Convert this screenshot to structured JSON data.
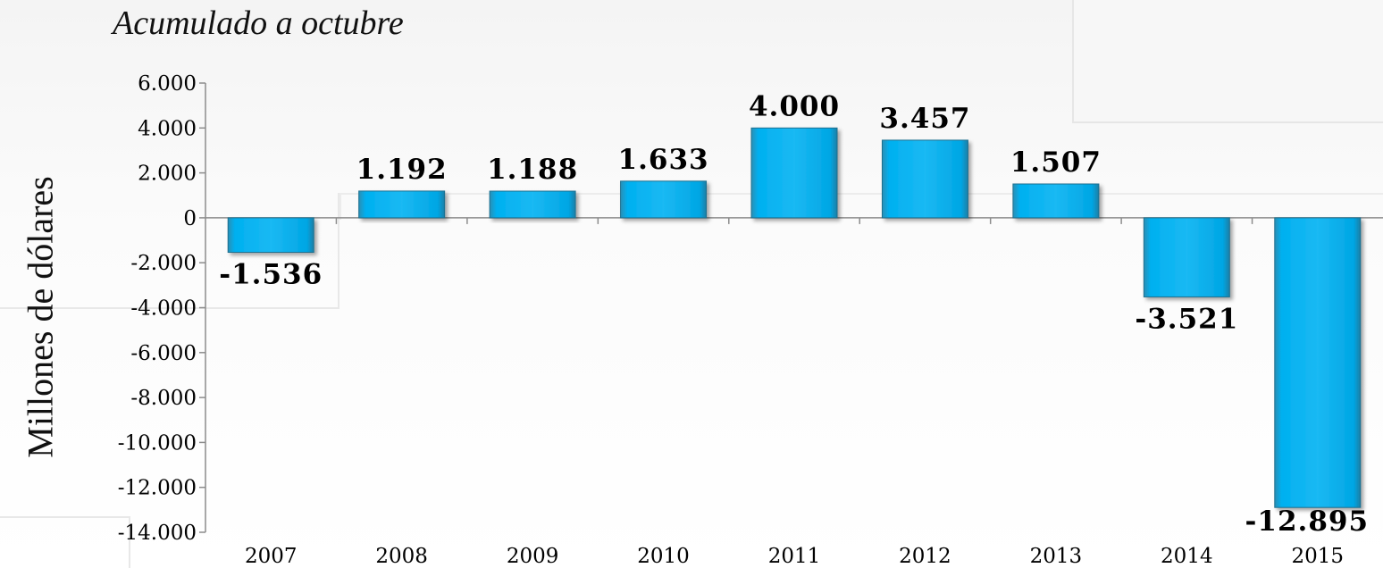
{
  "chart_data": {
    "type": "bar",
    "title": "",
    "subtitle": "Acumulado a octubre",
    "xlabel": "",
    "ylabel": "Millones de dólares",
    "categories": [
      "2007",
      "2008",
      "2009",
      "2010",
      "2011",
      "2012",
      "2013",
      "2014",
      "2015"
    ],
    "values": [
      -1536,
      1192,
      1188,
      1633,
      4000,
      3457,
      1507,
      -3521,
      -12895
    ],
    "data_labels": [
      "-1.536",
      "1.192",
      "1.188",
      "1.633",
      "4.000",
      "3.457",
      "1.507",
      "-3.521",
      "-12.895"
    ],
    "ylim": [
      -14000,
      6000
    ],
    "yticks": [
      6000,
      4000,
      2000,
      0,
      -2000,
      -4000,
      -6000,
      -8000,
      -10000,
      -12000,
      -14000
    ],
    "ytick_labels": [
      "6.000",
      "4.000",
      "2.000",
      "0",
      "-2.000",
      "-4.000",
      "-6.000",
      "-8.000",
      "-10.000",
      "-12.000",
      "-14.000"
    ],
    "grid": false,
    "legend": "none",
    "colors": {
      "bar": "#00b0f0",
      "bar_edge": "#1f6f8f",
      "axis": "#8c8c8c",
      "text": "#000000"
    }
  }
}
